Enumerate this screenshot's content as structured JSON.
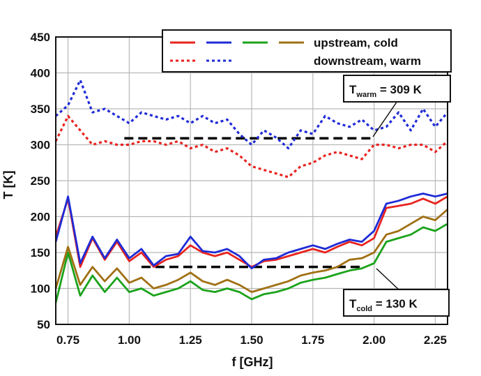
{
  "chart_data": {
    "type": "line",
    "xlabel": "f [GHz]",
    "ylabel": "T [K]",
    "xlim": [
      0.7,
      2.3
    ],
    "ylim": [
      50,
      450
    ],
    "xticks": [
      "0.75",
      "1.00",
      "1.25",
      "1.50",
      "1.75",
      "2.00",
      "2.25"
    ],
    "yticks": [
      "50",
      "100",
      "150",
      "200",
      "250",
      "300",
      "350",
      "400",
      "450"
    ],
    "grid": true,
    "legend": {
      "position": "top-right",
      "row_labels": [
        "upstream, cold",
        "downstream, warm"
      ]
    },
    "annotations": [
      {
        "id": "t_warm",
        "symbol": "T",
        "sub": "warm",
        "text": " = 309 K",
        "value": 309
      },
      {
        "id": "t_cold",
        "symbol": "T",
        "sub": "cold",
        "text": " = 130 K",
        "value": 130
      }
    ],
    "reference_lines": [
      {
        "y": 309,
        "x": [
          0.98,
          2.0
        ],
        "style": "dashed",
        "color": "#000000"
      },
      {
        "y": 130,
        "x": [
          1.05,
          1.95
        ],
        "style": "dashed",
        "color": "#000000"
      }
    ],
    "x": [
      0.7,
      0.75,
      0.8,
      0.85,
      0.9,
      0.95,
      1.0,
      1.05,
      1.1,
      1.15,
      1.2,
      1.25,
      1.3,
      1.35,
      1.4,
      1.45,
      1.5,
      1.55,
      1.6,
      1.65,
      1.7,
      1.75,
      1.8,
      1.85,
      1.9,
      1.95,
      2.0,
      2.05,
      2.1,
      2.15,
      2.2,
      2.25,
      2.3
    ],
    "series": [
      {
        "color": "#e8231f",
        "style": "solid",
        "values": [
          172,
          225,
          130,
          170,
          140,
          165,
          138,
          150,
          130,
          140,
          145,
          160,
          150,
          145,
          150,
          140,
          130,
          138,
          140,
          145,
          150,
          155,
          150,
          158,
          165,
          160,
          170,
          212,
          215,
          218,
          225,
          218,
          228
        ]
      },
      {
        "color": "#1f2bd6",
        "style": "solid",
        "values": [
          165,
          228,
          135,
          172,
          142,
          168,
          142,
          155,
          132,
          145,
          148,
          172,
          152,
          150,
          155,
          145,
          128,
          140,
          142,
          150,
          155,
          160,
          155,
          162,
          168,
          165,
          180,
          218,
          222,
          228,
          232,
          228,
          232
        ]
      },
      {
        "color": "#1aa31a",
        "style": "solid",
        "values": [
          80,
          150,
          90,
          118,
          95,
          115,
          95,
          100,
          90,
          95,
          100,
          110,
          98,
          95,
          100,
          95,
          85,
          92,
          95,
          100,
          108,
          112,
          115,
          120,
          125,
          128,
          135,
          165,
          170,
          175,
          185,
          180,
          190
        ]
      },
      {
        "color": "#a07014",
        "style": "solid",
        "values": [
          100,
          158,
          105,
          130,
          110,
          128,
          108,
          115,
          100,
          105,
          112,
          122,
          110,
          105,
          112,
          105,
          95,
          100,
          105,
          110,
          118,
          122,
          125,
          130,
          140,
          142,
          150,
          175,
          180,
          190,
          200,
          195,
          210
        ]
      },
      {
        "color": "#e8231f",
        "style": "dotted",
        "values": [
          305,
          340,
          320,
          300,
          305,
          300,
          300,
          305,
          305,
          300,
          305,
          295,
          300,
          290,
          295,
          285,
          270,
          265,
          260,
          255,
          270,
          275,
          285,
          290,
          285,
          280,
          300,
          300,
          295,
          300,
          300,
          290,
          305
        ]
      },
      {
        "color": "#1f2bd6",
        "style": "dotted",
        "values": [
          340,
          355,
          390,
          345,
          350,
          340,
          330,
          345,
          340,
          335,
          340,
          330,
          340,
          330,
          335,
          315,
          300,
          320,
          310,
          295,
          320,
          315,
          340,
          330,
          325,
          335,
          320,
          325,
          345,
          320,
          350,
          325,
          345
        ]
      }
    ]
  }
}
